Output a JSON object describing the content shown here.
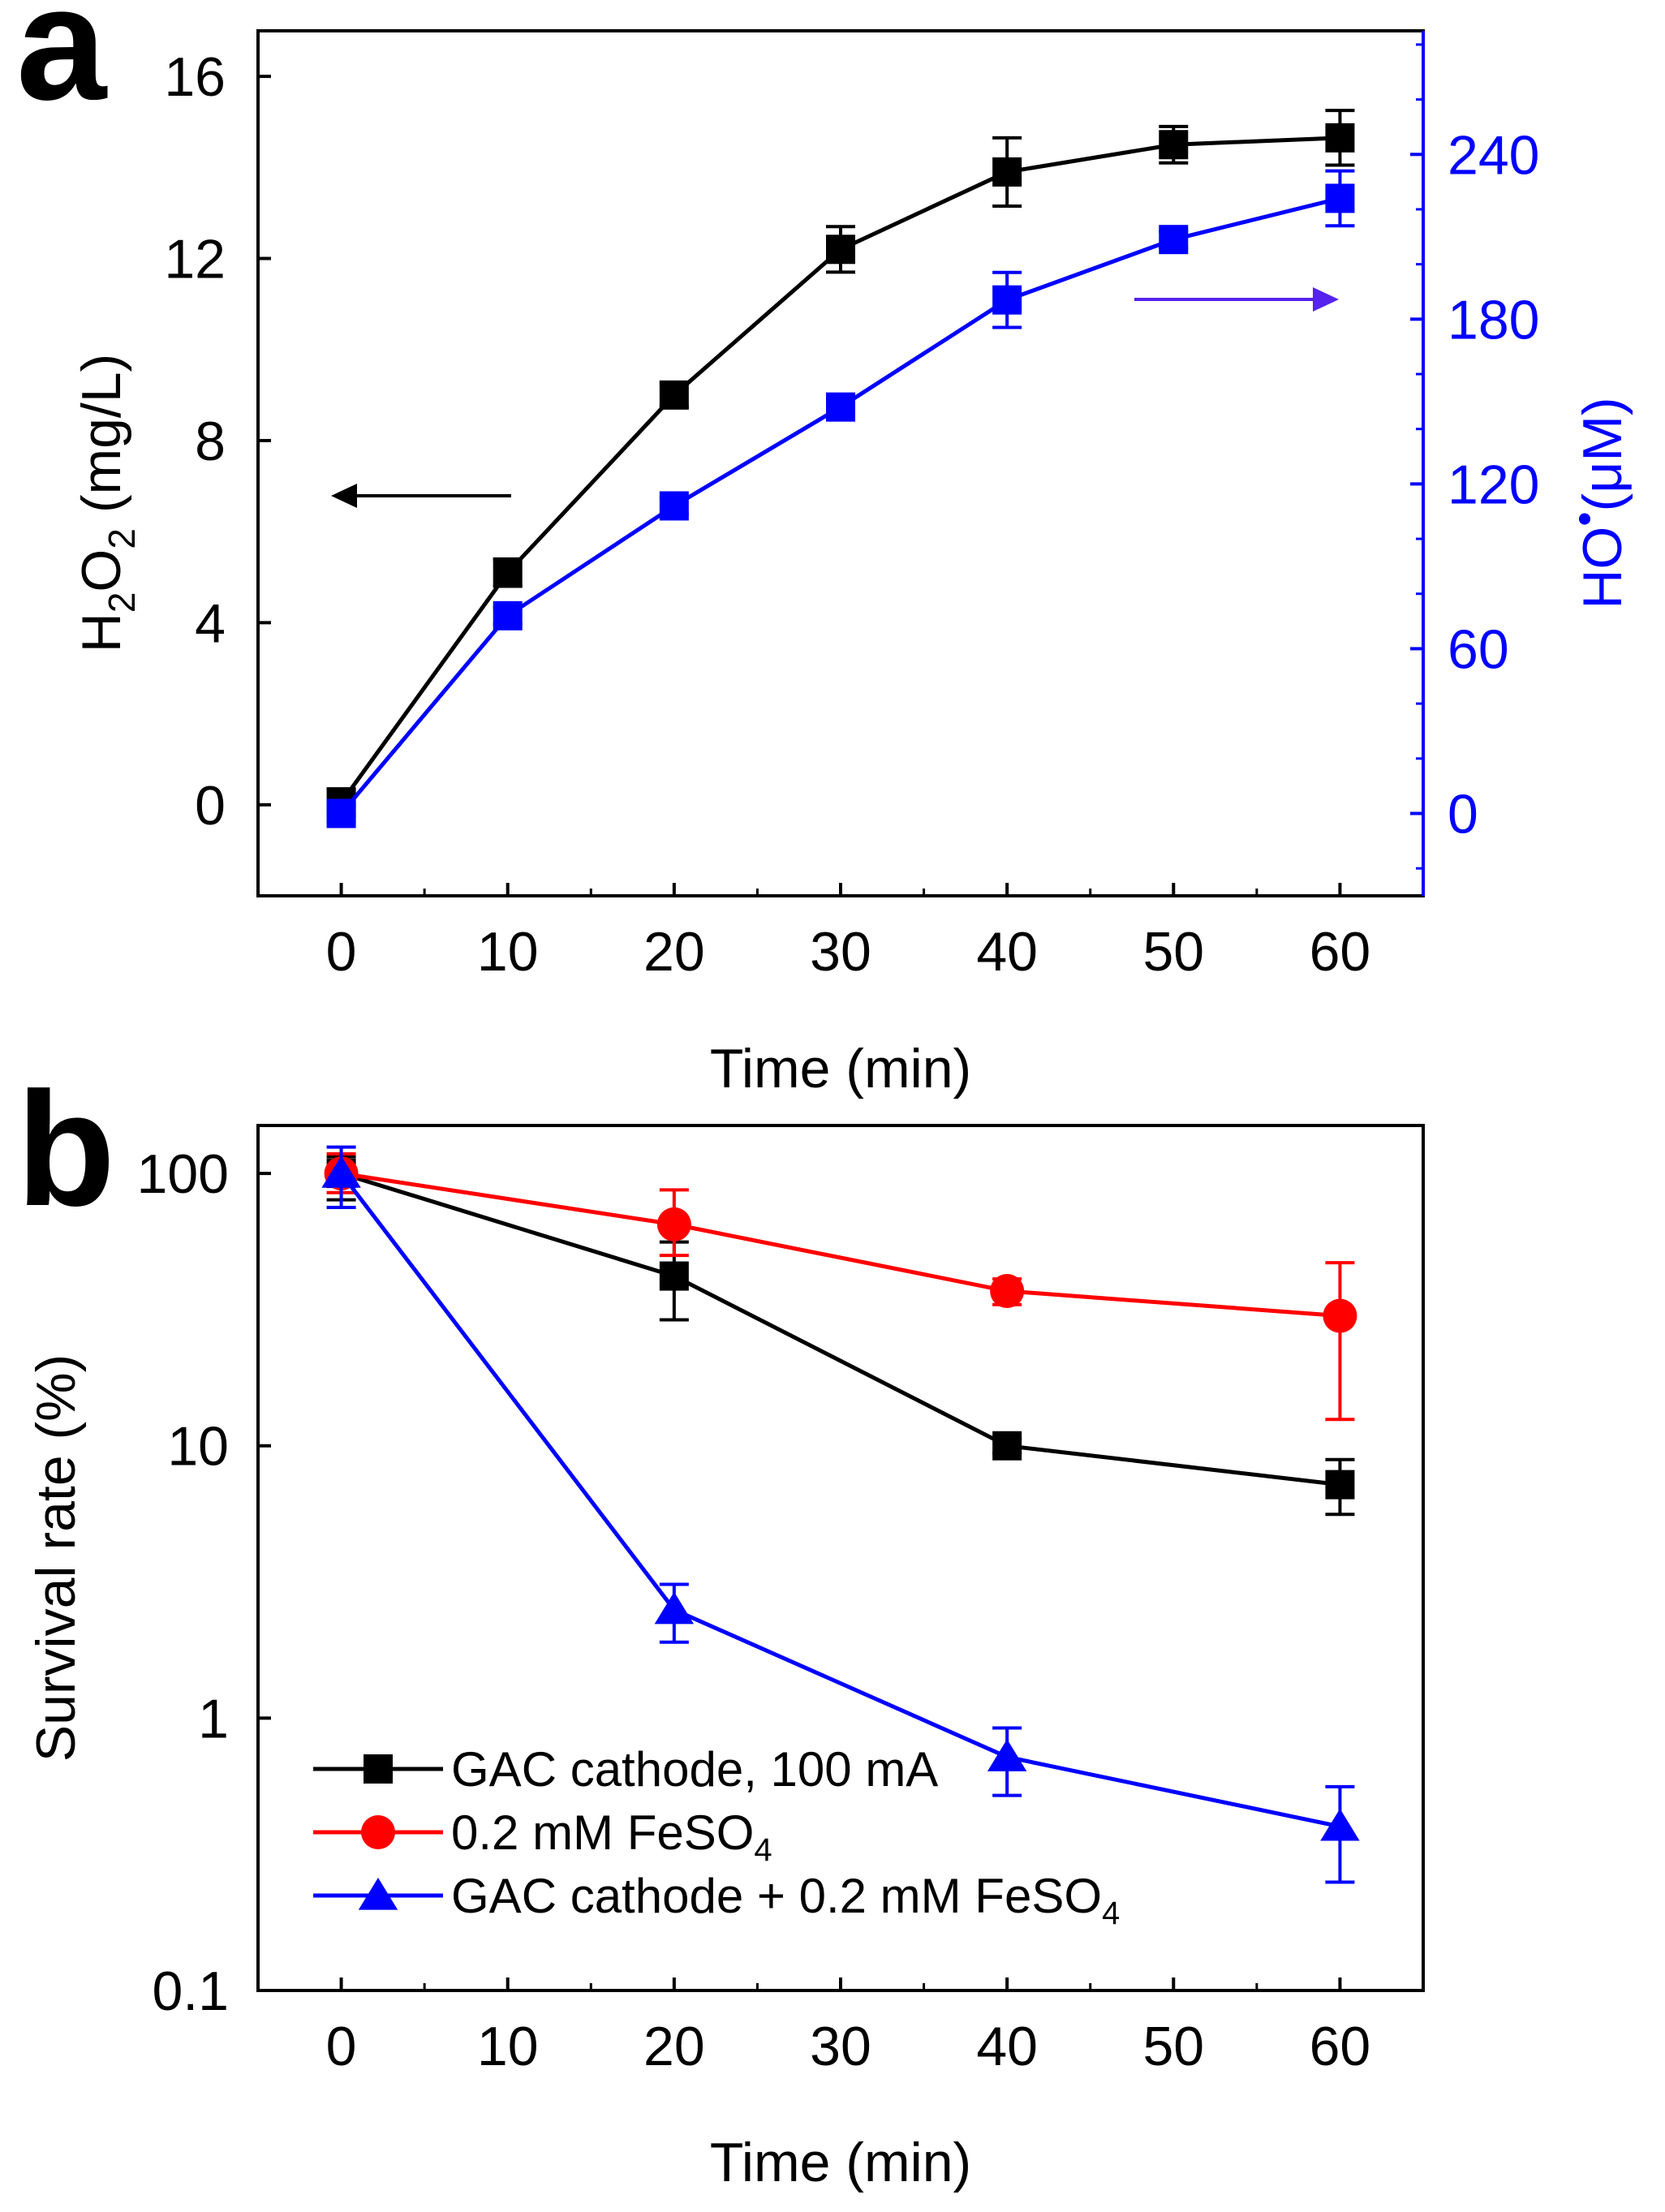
{
  "chart_data": [
    {
      "panel": "a",
      "type": "line",
      "title": "",
      "xlabel": "Time (min)",
      "x_ticks": [
        0,
        10,
        20,
        30,
        40,
        50,
        60
      ],
      "xlim": [
        -5,
        65
      ],
      "ylabel_left": {
        "main": "H",
        "sub1": "2",
        "mid": "O",
        "sub2": "2",
        "rest": " (mg/L)"
      },
      "ylabel_right": {
        "main": "HO",
        "sup": "•",
        "rest": "(μM)"
      },
      "ylim_left": [
        -2,
        17
      ],
      "yticks_left": [
        0,
        4,
        8,
        12,
        16
      ],
      "ylim_right": [
        -30,
        285
      ],
      "yticks_right": [
        0,
        60,
        120,
        180,
        240
      ],
      "colors": {
        "left": "#000000",
        "right": "#0000ff",
        "arrow_right": "#5522ee"
      },
      "annotations": [
        "arrow pointing to left axis (H2O2)",
        "arrow pointing to right axis (HO•)"
      ],
      "series": [
        {
          "name": "H2O2",
          "axis": "left",
          "color": "#000000",
          "marker": "square",
          "x": [
            0,
            10,
            20,
            30,
            40,
            50,
            60
          ],
          "y": [
            0.05,
            5.1,
            9.0,
            12.2,
            13.9,
            14.5,
            14.65
          ],
          "err": [
            0.3,
            0.3,
            0.25,
            0.5,
            0.75,
            0.4,
            0.6
          ]
        },
        {
          "name": "HO•",
          "axis": "right",
          "color": "#0000ff",
          "marker": "square",
          "x": [
            0,
            10,
            20,
            30,
            40,
            50,
            60
          ],
          "y": [
            0,
            72,
            112,
            148,
            187,
            209,
            224
          ],
          "err": [
            3,
            3,
            3,
            3,
            10,
            3,
            10
          ]
        }
      ]
    },
    {
      "panel": "b",
      "type": "line",
      "title": "",
      "xlabel": "Time (min)",
      "ylabel": "Survival rate (%)",
      "yscale": "log",
      "x_ticks": [
        0,
        10,
        20,
        30,
        40,
        50,
        60
      ],
      "xlim": [
        -5,
        65
      ],
      "ylim": [
        0.1,
        150
      ],
      "y_ticks": [
        0.1,
        1,
        10,
        100
      ],
      "y_tick_labels": [
        "0.1",
        "1",
        "10",
        "100"
      ],
      "legend_position": "bottom-left",
      "series": [
        {
          "name": "GAC cathode, 100 mA",
          "color": "#000000",
          "marker": "square",
          "x": [
            0,
            20,
            40,
            60
          ],
          "y": [
            100,
            42,
            10,
            7.2
          ],
          "err_low": [
            80,
            29,
            9.4,
            5.6
          ],
          "err_high": [
            115,
            56,
            10.6,
            8.9
          ]
        },
        {
          "name": "0.2 mM FeSO4",
          "legend_main": "0.2 mM FeSO",
          "legend_sub": "4",
          "color": "#ff0000",
          "marker": "circle",
          "x": [
            0,
            20,
            40,
            60
          ],
          "y": [
            100,
            65,
            37,
            30
          ],
          "err_low": [
            85,
            50,
            33,
            12.5
          ],
          "err_high": [
            118,
            87,
            41,
            47
          ]
        },
        {
          "name": "GAC cathode + 0.2 mM FeSO4",
          "legend_main": "GAC cathode + 0.2 mM FeSO",
          "legend_sub": "4",
          "color": "#0000ff",
          "marker": "triangle",
          "x": [
            0,
            20,
            40,
            60
          ],
          "y": [
            100,
            2.5,
            0.72,
            0.4
          ],
          "err_low": [
            75,
            1.9,
            0.52,
            0.25
          ],
          "err_high": [
            125,
            3.1,
            0.92,
            0.56
          ]
        }
      ]
    }
  ],
  "panel_labels": [
    "a",
    "b"
  ]
}
